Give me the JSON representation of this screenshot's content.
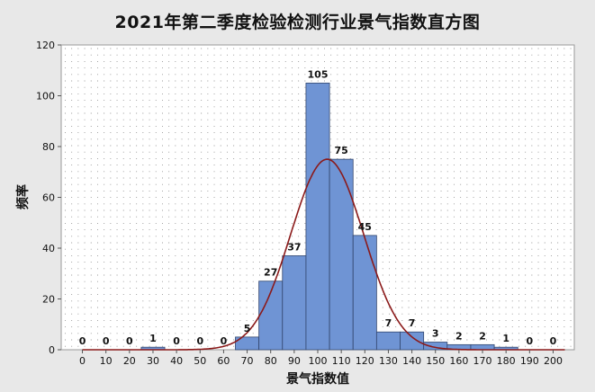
{
  "chart_data": {
    "type": "bar",
    "title": "2021年第二季度检验检测行业景气指数直方图",
    "xlabel": "景气指数值",
    "ylabel": "频率",
    "bin_edges": [
      -5,
      5,
      15,
      25,
      35,
      45,
      55,
      65,
      75,
      85,
      95,
      105,
      115,
      125,
      135,
      145,
      155,
      165,
      175,
      185,
      195,
      205
    ],
    "categories": [
      "0",
      "10",
      "20",
      "30",
      "40",
      "50",
      "60",
      "70",
      "80",
      "90",
      "100",
      "110",
      "120",
      "130",
      "140",
      "150",
      "160",
      "170",
      "180",
      "190",
      "200"
    ],
    "values": [
      0,
      0,
      0,
      1,
      0,
      0,
      0,
      5,
      27,
      37,
      105,
      75,
      45,
      7,
      7,
      3,
      2,
      2,
      1,
      0,
      0
    ],
    "data_labels": [
      "0",
      "0",
      "0",
      "1",
      "0",
      "0",
      "0",
      "5",
      "27",
      "37",
      "105",
      "75",
      "45",
      "7",
      "7",
      "3",
      "2",
      "2",
      "1",
      "0",
      "0"
    ],
    "x_ticks": [
      "0",
      "10",
      "20",
      "30",
      "40",
      "50",
      "60",
      "70",
      "80",
      "90",
      "100",
      "110",
      "120",
      "130",
      "140",
      "150",
      "160",
      "170",
      "180",
      "190",
      "200"
    ],
    "y_ticks": [
      "0",
      "20",
      "40",
      "60",
      "80",
      "100",
      "120"
    ],
    "xlim": [
      -9,
      209
    ],
    "ylim": [
      0,
      120
    ],
    "grid": "dotted",
    "fit_curve": {
      "type": "normal",
      "mean": 104,
      "sd": 15.5,
      "peak": 75
    },
    "colors": {
      "bar": "#6f94d4",
      "bar_edge": "#32466e",
      "curve": "#8b1a1a",
      "plot_bg": "#ffffff",
      "frame_bg": "#e8e8e8"
    }
  }
}
